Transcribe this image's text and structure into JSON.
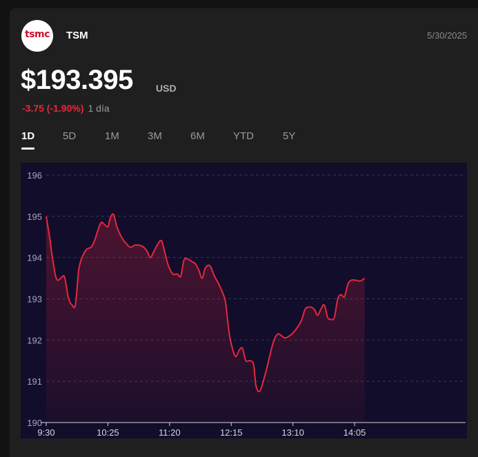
{
  "header": {
    "logo_text": "tsmc",
    "ticker": "TSM",
    "date": "5/30/2025"
  },
  "quote": {
    "price": "$193.395",
    "currency": "USD",
    "change": "-3.75 (-1.90%)",
    "period": "1 día"
  },
  "tabs": [
    {
      "label": "1D",
      "active": true
    },
    {
      "label": "5D",
      "active": false
    },
    {
      "label": "1M",
      "active": false
    },
    {
      "label": "3M",
      "active": false
    },
    {
      "label": "6M",
      "active": false
    },
    {
      "label": "YTD",
      "active": false
    },
    {
      "label": "5Y",
      "active": false
    }
  ],
  "colors": {
    "line": "#e8273c",
    "plot_bg": "#110d2b",
    "grid": "#3a3658"
  },
  "chart_data": {
    "type": "area",
    "x_ticks": [
      "9:30",
      "10:25",
      "11:20",
      "12:15",
      "13:10",
      "14:05"
    ],
    "y_ticks": [
      "190",
      "191",
      "192",
      "193",
      "194",
      "195",
      "196"
    ],
    "ylim": [
      190,
      196.3
    ],
    "x_range_minutes": [
      0,
      374
    ],
    "series": [
      {
        "points": [
          [
            0,
            195.0
          ],
          [
            3,
            194.5
          ],
          [
            5,
            194.1
          ],
          [
            8,
            193.6
          ],
          [
            10,
            193.45
          ],
          [
            13,
            193.5
          ],
          [
            16,
            193.55
          ],
          [
            18,
            193.3
          ],
          [
            20,
            193.0
          ],
          [
            23,
            192.85
          ],
          [
            26,
            192.85
          ],
          [
            29,
            193.7
          ],
          [
            32,
            194.0
          ],
          [
            36,
            194.2
          ],
          [
            40,
            194.25
          ],
          [
            43,
            194.4
          ],
          [
            46,
            194.65
          ],
          [
            49,
            194.85
          ],
          [
            52,
            194.8
          ],
          [
            55,
            194.75
          ],
          [
            57,
            194.95
          ],
          [
            60,
            195.05
          ],
          [
            63,
            194.75
          ],
          [
            67,
            194.5
          ],
          [
            71,
            194.35
          ],
          [
            75,
            194.25
          ],
          [
            79,
            194.3
          ],
          [
            83,
            194.3
          ],
          [
            87,
            194.25
          ],
          [
            90,
            194.15
          ],
          [
            93,
            194.0
          ],
          [
            96,
            194.15
          ],
          [
            100,
            194.35
          ],
          [
            103,
            194.4
          ],
          [
            106,
            194.1
          ],
          [
            109,
            193.8
          ],
          [
            113,
            193.6
          ],
          [
            117,
            193.6
          ],
          [
            120,
            193.55
          ],
          [
            123,
            193.95
          ],
          [
            127,
            193.95
          ],
          [
            130,
            193.9
          ],
          [
            133,
            193.85
          ],
          [
            136,
            193.7
          ],
          [
            139,
            193.5
          ],
          [
            142,
            193.75
          ],
          [
            146,
            193.8
          ],
          [
            150,
            193.55
          ],
          [
            154,
            193.35
          ],
          [
            158,
            193.1
          ],
          [
            160,
            192.9
          ],
          [
            163,
            192.2
          ],
          [
            166,
            191.8
          ],
          [
            169,
            191.6
          ],
          [
            172,
            191.75
          ],
          [
            175,
            191.8
          ],
          [
            178,
            191.5
          ],
          [
            182,
            191.5
          ],
          [
            185,
            191.4
          ],
          [
            187,
            190.9
          ],
          [
            190,
            190.75
          ],
          [
            193,
            190.95
          ],
          [
            197,
            191.35
          ],
          [
            201,
            191.8
          ],
          [
            204,
            192.05
          ],
          [
            207,
            192.15
          ],
          [
            210,
            192.1
          ],
          [
            213,
            192.05
          ],
          [
            217,
            192.1
          ],
          [
            221,
            192.2
          ],
          [
            225,
            192.35
          ],
          [
            228,
            192.5
          ],
          [
            231,
            192.75
          ],
          [
            235,
            192.8
          ],
          [
            239,
            192.75
          ],
          [
            242,
            192.6
          ],
          [
            245,
            192.75
          ],
          [
            248,
            192.85
          ],
          [
            251,
            192.55
          ],
          [
            254,
            192.5
          ],
          [
            257,
            192.55
          ],
          [
            260,
            193.0
          ],
          [
            263,
            193.1
          ],
          [
            266,
            193.05
          ],
          [
            269,
            193.35
          ],
          [
            272,
            193.45
          ],
          [
            276,
            193.45
          ],
          [
            280,
            193.43
          ],
          [
            284,
            193.5
          ]
        ]
      }
    ]
  }
}
